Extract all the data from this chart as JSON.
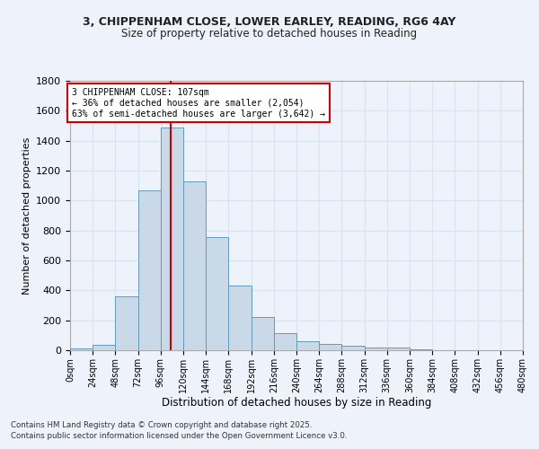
{
  "title1": "3, CHIPPENHAM CLOSE, LOWER EARLEY, READING, RG6 4AY",
  "title2": "Size of property relative to detached houses in Reading",
  "xlabel": "Distribution of detached houses by size in Reading",
  "ylabel": "Number of detached properties",
  "bin_edges": [
    0,
    24,
    48,
    72,
    96,
    120,
    144,
    168,
    192,
    216,
    240,
    264,
    288,
    312,
    336,
    360,
    384,
    408,
    432,
    456,
    480
  ],
  "bar_heights": [
    15,
    35,
    360,
    1070,
    1490,
    1130,
    755,
    435,
    225,
    115,
    60,
    45,
    28,
    20,
    18,
    5,
    3,
    2,
    1,
    1
  ],
  "bar_color": "#c9d9e8",
  "bar_edgecolor": "#6699bb",
  "grid_color": "#d8e4f0",
  "bg_color": "#edf2fb",
  "vline_x": 107,
  "vline_color": "#cc0000",
  "annotation_text": "3 CHIPPENHAM CLOSE: 107sqm\n← 36% of detached houses are smaller (2,054)\n63% of semi-detached houses are larger (3,642) →",
  "annotation_box_color": "#ffffff",
  "annotation_box_edgecolor": "#cc0000",
  "ylim": [
    0,
    1800
  ],
  "yticks": [
    0,
    200,
    400,
    600,
    800,
    1000,
    1200,
    1400,
    1600,
    1800
  ],
  "xlim": [
    0,
    480
  ],
  "footer1": "Contains HM Land Registry data © Crown copyright and database right 2025.",
  "footer2": "Contains public sector information licensed under the Open Government Licence v3.0."
}
